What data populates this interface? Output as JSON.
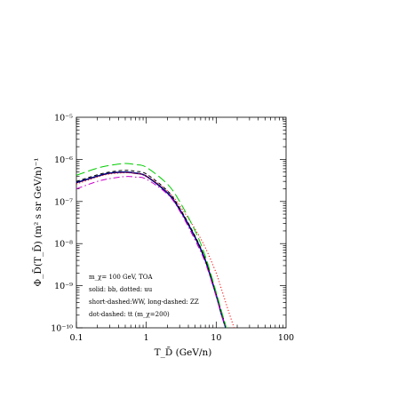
{
  "chart_data": {
    "type": "line",
    "xscale": "log",
    "yscale": "log",
    "xlim": [
      0.1,
      100
    ],
    "ylim": [
      1e-10,
      1e-05
    ],
    "xlabel": "T_D̄  (GeV/n)",
    "ylabel": "Φ_D̄(T_D̄)  (m² s sr GeV/n)⁻¹",
    "x_tick_labels": [
      "0.1",
      "1",
      "10",
      "100"
    ],
    "y_tick_labels": [
      "10⁻¹⁰",
      "10⁻⁹",
      "10⁻⁸",
      "10⁻⁷",
      "10⁻⁶",
      "10⁻⁵"
    ],
    "grid": false,
    "annotations": [
      "m_χ= 100 GeV, TOA",
      "solid: bb, dotted: uu",
      "short-dashed:WW, long-dashed: ZZ",
      "dot-dashed: tt (m_χ=200)"
    ],
    "series": [
      {
        "name": "bb",
        "style": "solid",
        "color": "#000080",
        "x": [
          0.1,
          0.2,
          0.3,
          0.5,
          0.7,
          1,
          2,
          3,
          5,
          7,
          10,
          12,
          14
        ],
        "y": [
          2.8e-07,
          4e-07,
          4.7e-07,
          5e-07,
          4.7e-07,
          4e-07,
          1.6e-07,
          6.5e-08,
          1.4e-08,
          4e-09,
          6e-10,
          2e-10,
          9e-11
        ]
      },
      {
        "name": "uu",
        "style": "dotted",
        "color": "#ff0000",
        "x": [
          0.1,
          0.2,
          0.3,
          0.5,
          0.7,
          1,
          2,
          3,
          5,
          7,
          10,
          12,
          15,
          18
        ],
        "y": [
          2.6e-07,
          3.8e-07,
          4.5e-07,
          4.8e-07,
          4.6e-07,
          4e-07,
          1.8e-07,
          8e-08,
          2.2e-08,
          8e-09,
          2e-09,
          8e-10,
          2.5e-10,
          1e-10
        ]
      },
      {
        "name": "WW",
        "style": "short-dashed",
        "color": "#000000",
        "x": [
          0.1,
          0.2,
          0.3,
          0.5,
          0.7,
          1,
          2,
          3,
          5,
          7,
          10,
          12,
          14
        ],
        "y": [
          3e-07,
          4.3e-07,
          5e-07,
          5.5e-07,
          5.2e-07,
          4.5e-07,
          1.8e-07,
          7e-08,
          1.5e-08,
          4.2e-09,
          6.5e-10,
          2.2e-10,
          1e-10
        ]
      },
      {
        "name": "ZZ",
        "style": "long-dashed",
        "color": "#00cc00",
        "x": [
          0.1,
          0.2,
          0.3,
          0.5,
          0.7,
          1,
          2,
          3,
          5,
          7,
          10,
          12,
          14
        ],
        "y": [
          4.2e-07,
          6.2e-07,
          7.2e-07,
          8e-07,
          7.5e-07,
          6.5e-07,
          2.6e-07,
          1e-07,
          2e-08,
          5e-09,
          7e-10,
          2.4e-10,
          1e-10
        ]
      },
      {
        "name": "tt",
        "style": "dot-dashed",
        "color": "#cc00cc",
        "x": [
          0.1,
          0.2,
          0.3,
          0.5,
          0.7,
          1,
          2,
          3,
          5,
          7,
          10,
          12,
          14
        ],
        "y": [
          2e-07,
          3e-07,
          3.5e-07,
          3.9e-07,
          3.8e-07,
          3.4e-07,
          1.5e-07,
          6e-08,
          1.2e-08,
          3.5e-09,
          5.5e-10,
          1.9e-10,
          9e-11
        ]
      }
    ]
  }
}
